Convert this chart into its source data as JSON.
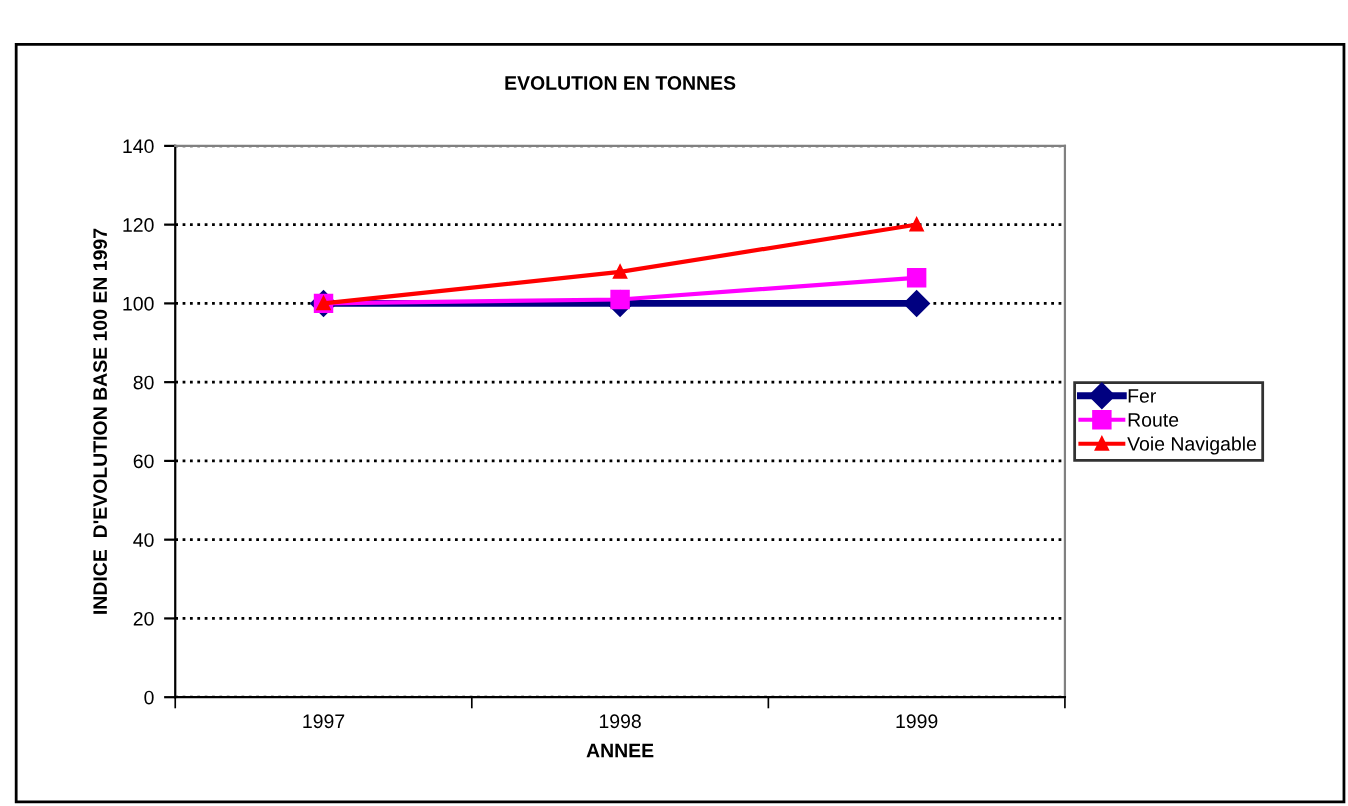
{
  "chart_data": {
    "type": "line",
    "title": "EVOLUTION EN TONNES",
    "xlabel": "ANNEE",
    "ylabel": "INDICE  D'EVOLUTION BASE 100 EN 1997",
    "categories": [
      "1997",
      "1998",
      "1999"
    ],
    "series": [
      {
        "name": "Fer",
        "color": "#000080",
        "marker": "diamond",
        "values": [
          100,
          100,
          100
        ]
      },
      {
        "name": "Route",
        "color": "#ff00ff",
        "marker": "square",
        "values": [
          100,
          101,
          106.5
        ]
      },
      {
        "name": "Voie Navigable",
        "color": "#ff0000",
        "marker": "triangle",
        "values": [
          100,
          108,
          120
        ]
      }
    ],
    "ylim": [
      0,
      140
    ],
    "yticks": [
      0,
      20,
      40,
      60,
      80,
      100,
      120,
      140
    ],
    "grid": "y",
    "legend": "right"
  }
}
